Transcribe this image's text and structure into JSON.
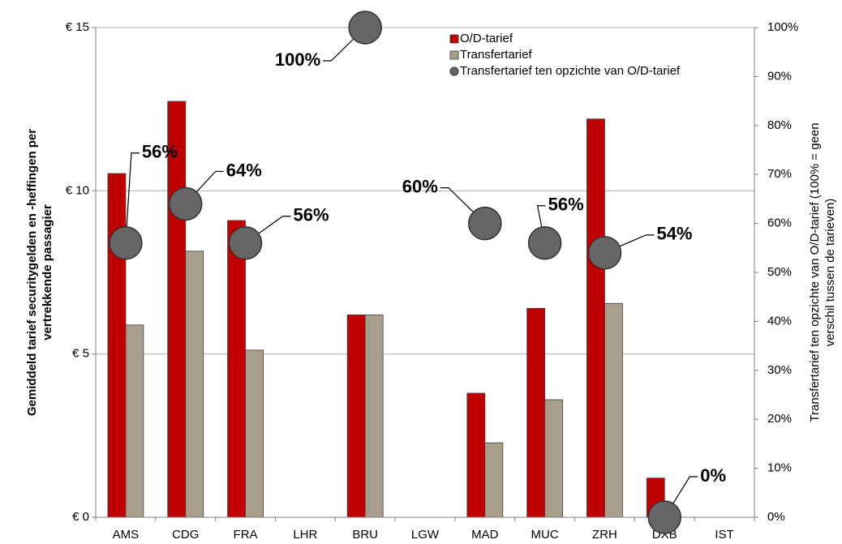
{
  "chart_data": {
    "type": "bar",
    "categories": [
      "AMS",
      "CDG",
      "FRA",
      "LHR",
      "BRU",
      "LGW",
      "MAD",
      "MUC",
      "ZRH",
      "DXB",
      "IST"
    ],
    "series": [
      {
        "name": "O/D-tarief",
        "color": "#c00000",
        "values": [
          10.53,
          12.74,
          9.09,
          null,
          6.2,
          null,
          3.8,
          6.4,
          12.2,
          1.2,
          null
        ]
      },
      {
        "name": "Transfertarief",
        "color": "#a89e8b",
        "values": [
          5.89,
          8.15,
          5.12,
          null,
          6.2,
          null,
          2.28,
          3.6,
          6.55,
          0,
          null
        ]
      },
      {
        "name": "Transfertarief ten opzichte van O/D-tarief",
        "color": "#666666",
        "type": "scatter",
        "axis": "y2",
        "values": [
          56,
          64,
          56,
          null,
          100,
          null,
          60,
          56,
          54,
          0,
          null
        ],
        "value_labels": [
          "56%",
          "64%",
          "56%",
          null,
          "100%",
          null,
          "60%",
          "56%",
          "54%",
          "0%",
          null
        ]
      }
    ],
    "ylabel": [
      "Gemiddeld tarief securitygelden en -heffingen per",
      "vertrekkende passagier"
    ],
    "y2label": [
      "Transfertarief ten opzichte van O/D-tarief (100% = geen",
      "verschil tussen de tarieven)"
    ],
    "ylim": [
      0,
      15
    ],
    "yticks": [
      {
        "value": 0,
        "label": "€ 0"
      },
      {
        "value": 5,
        "label": "€ 5"
      },
      {
        "value": 10,
        "label": "€ 10"
      },
      {
        "value": 15,
        "label": "€ 15"
      }
    ],
    "y2lim": [
      0,
      100
    ],
    "y2ticks": [
      {
        "value": 0,
        "label": "0%"
      },
      {
        "value": 10,
        "label": "10%"
      },
      {
        "value": 20,
        "label": "20%"
      },
      {
        "value": 30,
        "label": "30%"
      },
      {
        "value": 40,
        "label": "40%"
      },
      {
        "value": 50,
        "label": "50%"
      },
      {
        "value": 60,
        "label": "60%"
      },
      {
        "value": 70,
        "label": "70%"
      },
      {
        "value": 80,
        "label": "80%"
      },
      {
        "value": 90,
        "label": "90%"
      },
      {
        "value": 100,
        "label": "100%"
      }
    ],
    "grid": true,
    "legend": "top"
  }
}
